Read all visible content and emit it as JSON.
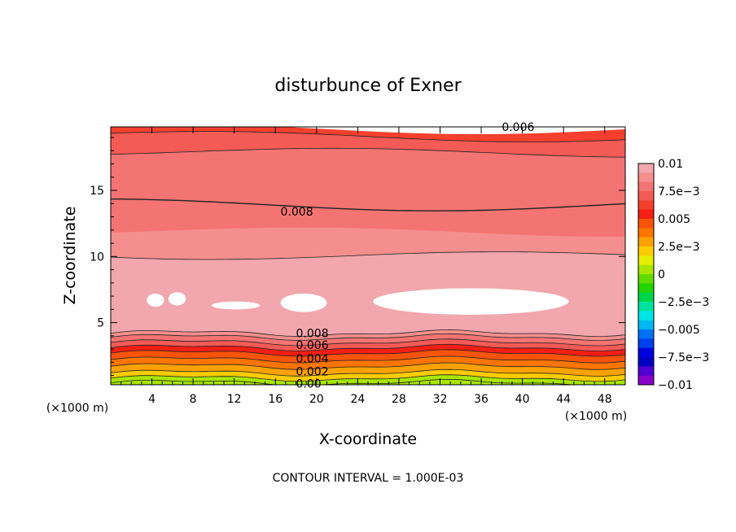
{
  "chart_data": {
    "type": "heatmap",
    "subtype": "filled-contour",
    "title": "disturbunce of Exner",
    "xlabel": "X-coordinate",
    "ylabel": "Z-coordinate",
    "x_unit": "(×1000 m)",
    "y_unit": "(×1000 m)",
    "footer": "CONTOUR INTERVAL = 1.000E-03",
    "xlim": [
      0,
      50
    ],
    "ylim": [
      0.3,
      19.8
    ],
    "xticks": [
      4,
      8,
      12,
      16,
      20,
      24,
      28,
      32,
      36,
      40,
      44,
      48
    ],
    "yticks": [
      5,
      10,
      15
    ],
    "contour_interval": 0.001,
    "grid": false,
    "colorbar": {
      "placement": "right",
      "min": -0.01,
      "max": 0.01,
      "labels": [
        "0.01",
        "7.5e-3",
        "0.005",
        "2.5e-3",
        "0",
        "-2.5e-3",
        "-0.005",
        "-7.5e-3",
        "-0.01"
      ],
      "colors": [
        "#f2a6ad",
        "#f48f8d",
        "#f37472",
        "#f45a56",
        "#f5402e",
        "#f41e14",
        "#f85308",
        "#fb7500",
        "#fca200",
        "#fccc00",
        "#e5ee00",
        "#a8e600",
        "#62db00",
        "#22d400",
        "#00d54a",
        "#00e29e",
        "#00e5e5",
        "#00b9f2",
        "#0072f3",
        "#0040ee",
        "#0000e0",
        "#0000c4",
        "#5000d2",
        "#8800c6"
      ]
    },
    "contour_labels": [
      {
        "text": "0.006",
        "x": 38,
        "z": 19.8
      },
      {
        "text": "0.008",
        "x": 16.5,
        "z": 13.4
      },
      {
        "text": "0.008",
        "x": 18,
        "z": 4.2
      },
      {
        "text": "0.006",
        "x": 18,
        "z": 3.3
      },
      {
        "text": "0.004",
        "x": 18,
        "z": 2.3
      },
      {
        "text": "0.002",
        "x": 18,
        "z": 1.3
      },
      {
        "text": "0.00",
        "x": 18,
        "z": 0.4
      }
    ],
    "bands": [
      {
        "z_top": 19.8,
        "value": 0.0065
      },
      {
        "z_top": 19.2,
        "value": 0.0073
      },
      {
        "z_top": 18.0,
        "value": 0.0078
      },
      {
        "z_top": 14.0,
        "value": 0.0082
      },
      {
        "z_top": 12.0,
        "value": 0.0087
      },
      {
        "z_top": 10.2,
        "value": 0.0092
      },
      {
        "z_top": 8.8,
        "value": 0.0097
      },
      {
        "z_top": 4.2,
        "value": 0.0088
      },
      {
        "z_top": 3.9,
        "value": 0.0078
      },
      {
        "z_top": 3.5,
        "value": 0.0068
      },
      {
        "z_top": 3.1,
        "value": 0.0058
      },
      {
        "z_top": 2.7,
        "value": 0.0048
      },
      {
        "z_top": 2.2,
        "value": 0.0038
      },
      {
        "z_top": 1.7,
        "value": 0.0028
      },
      {
        "z_top": 1.2,
        "value": 0.0018
      },
      {
        "z_top": 0.8,
        "value": 0.0008
      },
      {
        "z_top": 0.45,
        "value": 0.0002
      }
    ],
    "contour_lines_z": [
      19.2,
      18.0,
      14.0,
      10.2,
      4.2,
      3.9,
      3.5,
      3.1,
      2.7,
      2.2,
      1.7,
      1.2,
      0.8,
      0.45
    ],
    "white_regions": [
      {
        "x": [
          3.5,
          5.2
        ],
        "z": [
          6.2,
          7.2
        ]
      },
      {
        "x": [
          5.6,
          7.3
        ],
        "z": [
          6.3,
          7.3
        ]
      },
      {
        "x": [
          9.8,
          14.5
        ],
        "z": [
          6.0,
          6.6
        ]
      },
      {
        "x": [
          16.5,
          21.0
        ],
        "z": [
          5.8,
          7.2
        ]
      },
      {
        "x": [
          25.5,
          44.5
        ],
        "z": [
          5.6,
          7.6
        ]
      }
    ]
  }
}
